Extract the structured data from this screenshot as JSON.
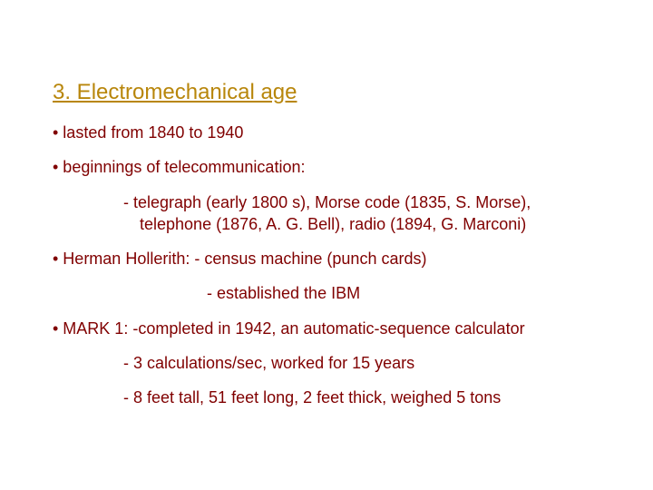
{
  "colors": {
    "title_color": "#b8860b",
    "body_color": "#800000"
  },
  "title": "3. Electromechanical age",
  "lines": {
    "l1": "• lasted from 1840 to 1940",
    "l2": "• beginnings of telecommunication:",
    "l3": "- telegraph (early 1800 s), Morse code (1835, S. Morse), telephone (1876, A. G. Bell), radio (1894, G. Marconi)",
    "l4": "• Herman Hollerith: - census machine (punch cards)",
    "l5": "- established the IBM",
    "l6": "• MARK 1: -completed in 1942, an automatic-sequence calculator",
    "l7": "- 3 calculations/sec, worked for 15 years",
    "l8": "- 8 feet tall, 51 feet long, 2 feet thick, weighed 5 tons"
  }
}
